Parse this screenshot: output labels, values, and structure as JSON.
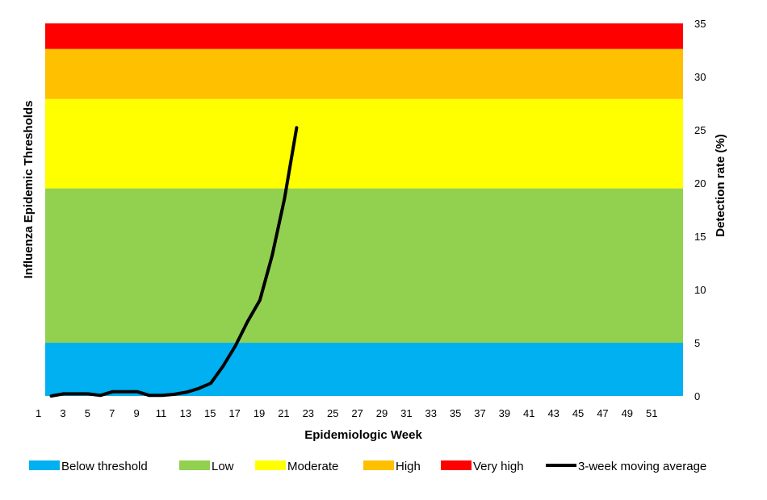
{
  "chart_data": {
    "type": "line",
    "xlabel": "Epidemiologic Week",
    "ylabel_left": "Influenza Epidemic Thresholds",
    "ylabel_right": "Detection rate (%)",
    "xlim": [
      1,
      52
    ],
    "ylim": [
      0,
      35
    ],
    "x_ticks": [
      1,
      3,
      5,
      7,
      9,
      11,
      13,
      15,
      17,
      19,
      21,
      23,
      25,
      27,
      29,
      31,
      33,
      35,
      37,
      39,
      41,
      43,
      45,
      47,
      49,
      51
    ],
    "y_ticks": [
      0,
      5,
      10,
      15,
      20,
      25,
      30,
      35
    ],
    "bands": [
      {
        "name": "Below threshold",
        "from": 0,
        "to": 5,
        "color": "#00b0f0"
      },
      {
        "name": "Low",
        "from": 5,
        "to": 19.5,
        "color": "#92d050"
      },
      {
        "name": "Moderate",
        "from": 19.5,
        "to": 27.9,
        "color": "#ffff00"
      },
      {
        "name": "High",
        "from": 27.9,
        "to": 32.6,
        "color": "#ffc000"
      },
      {
        "name": "Very high",
        "from": 32.6,
        "to": 35,
        "color": "#ff0000"
      }
    ],
    "series": [
      {
        "name": "3-week moving average",
        "color": "#000000",
        "x": [
          1,
          2,
          3,
          4,
          5,
          6,
          7,
          8,
          9,
          10,
          11,
          12,
          13,
          14,
          15,
          16,
          17,
          18,
          19,
          20,
          21
        ],
        "y": [
          0.0,
          0.2,
          0.2,
          0.2,
          0.05,
          0.4,
          0.4,
          0.4,
          0.05,
          0.05,
          0.15,
          0.35,
          0.7,
          1.2,
          2.8,
          4.7,
          7.0,
          9.0,
          13.2,
          18.5,
          25.2
        ]
      }
    ],
    "legend_position": "bottom",
    "grid": false
  }
}
